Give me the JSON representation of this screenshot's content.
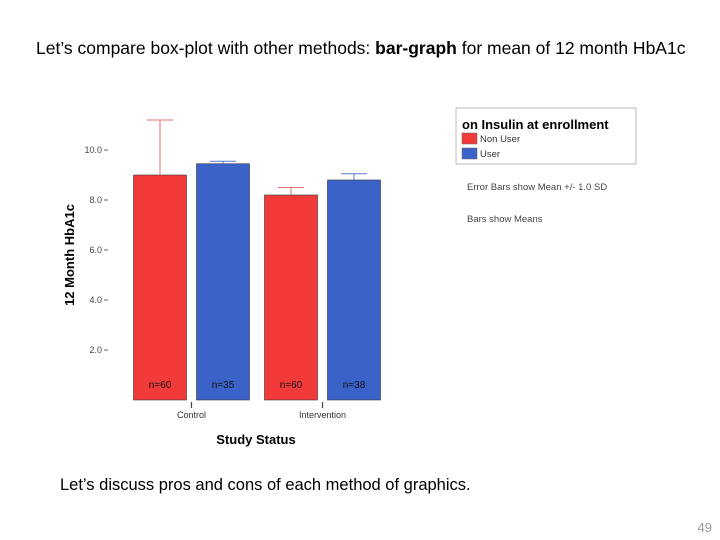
{
  "slide": {
    "title_prefix": "Let’s compare box-plot with other methods: ",
    "title_bold": "bar-graph",
    "title_suffix": " for mean of 12 month HbA1c",
    "discussion": "Let’s discuss pros and cons of each method of graphics.",
    "page_number": "49"
  },
  "chart_data": {
    "type": "bar",
    "title": "",
    "xlabel": "Study Status",
    "ylabel": "12 Month HbA1c",
    "categories": [
      "Control",
      "Intervention"
    ],
    "yticks": [
      2.0,
      4.0,
      6.0,
      8.0,
      10.0
    ],
    "ytick_labels": [
      "2.0",
      "4.0",
      "6.0",
      "8.0",
      "10.0"
    ],
    "ylim": [
      0,
      11.0
    ],
    "series": [
      {
        "name": "Non User",
        "color": "#f23a3a",
        "values": [
          9.0,
          8.2
        ],
        "sd": [
          2.2,
          0.3
        ],
        "n_labels": [
          "n=60",
          "n=60"
        ]
      },
      {
        "name": "User",
        "color": "#3a62c8",
        "values": [
          9.45,
          8.8
        ],
        "sd": [
          0.1,
          0.25
        ],
        "n_labels": [
          "n=35",
          "n=38"
        ]
      }
    ],
    "legend": {
      "title": "on Insulin at enrollment",
      "position": "top-right"
    },
    "notes": [
      "Error Bars show Mean +/- 1.0 SD",
      "Bars show Means"
    ],
    "grid": false
  }
}
